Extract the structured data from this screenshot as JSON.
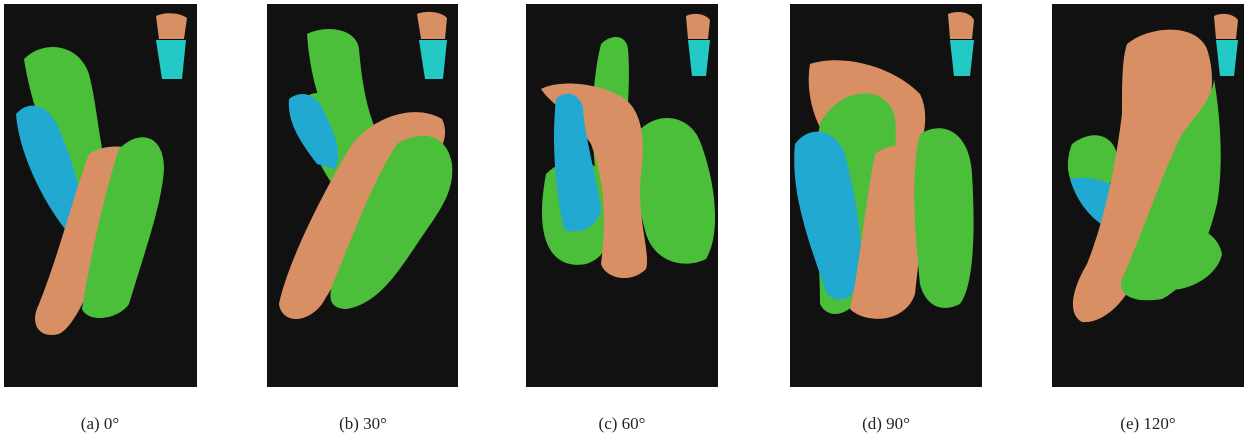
{
  "figure": {
    "panels": [
      {
        "caption": "(a) 0°"
      },
      {
        "caption": "(b) 30°"
      },
      {
        "caption": "(c) 60°"
      },
      {
        "caption": "(d) 90°"
      },
      {
        "caption": "(e) 120°"
      }
    ]
  }
}
